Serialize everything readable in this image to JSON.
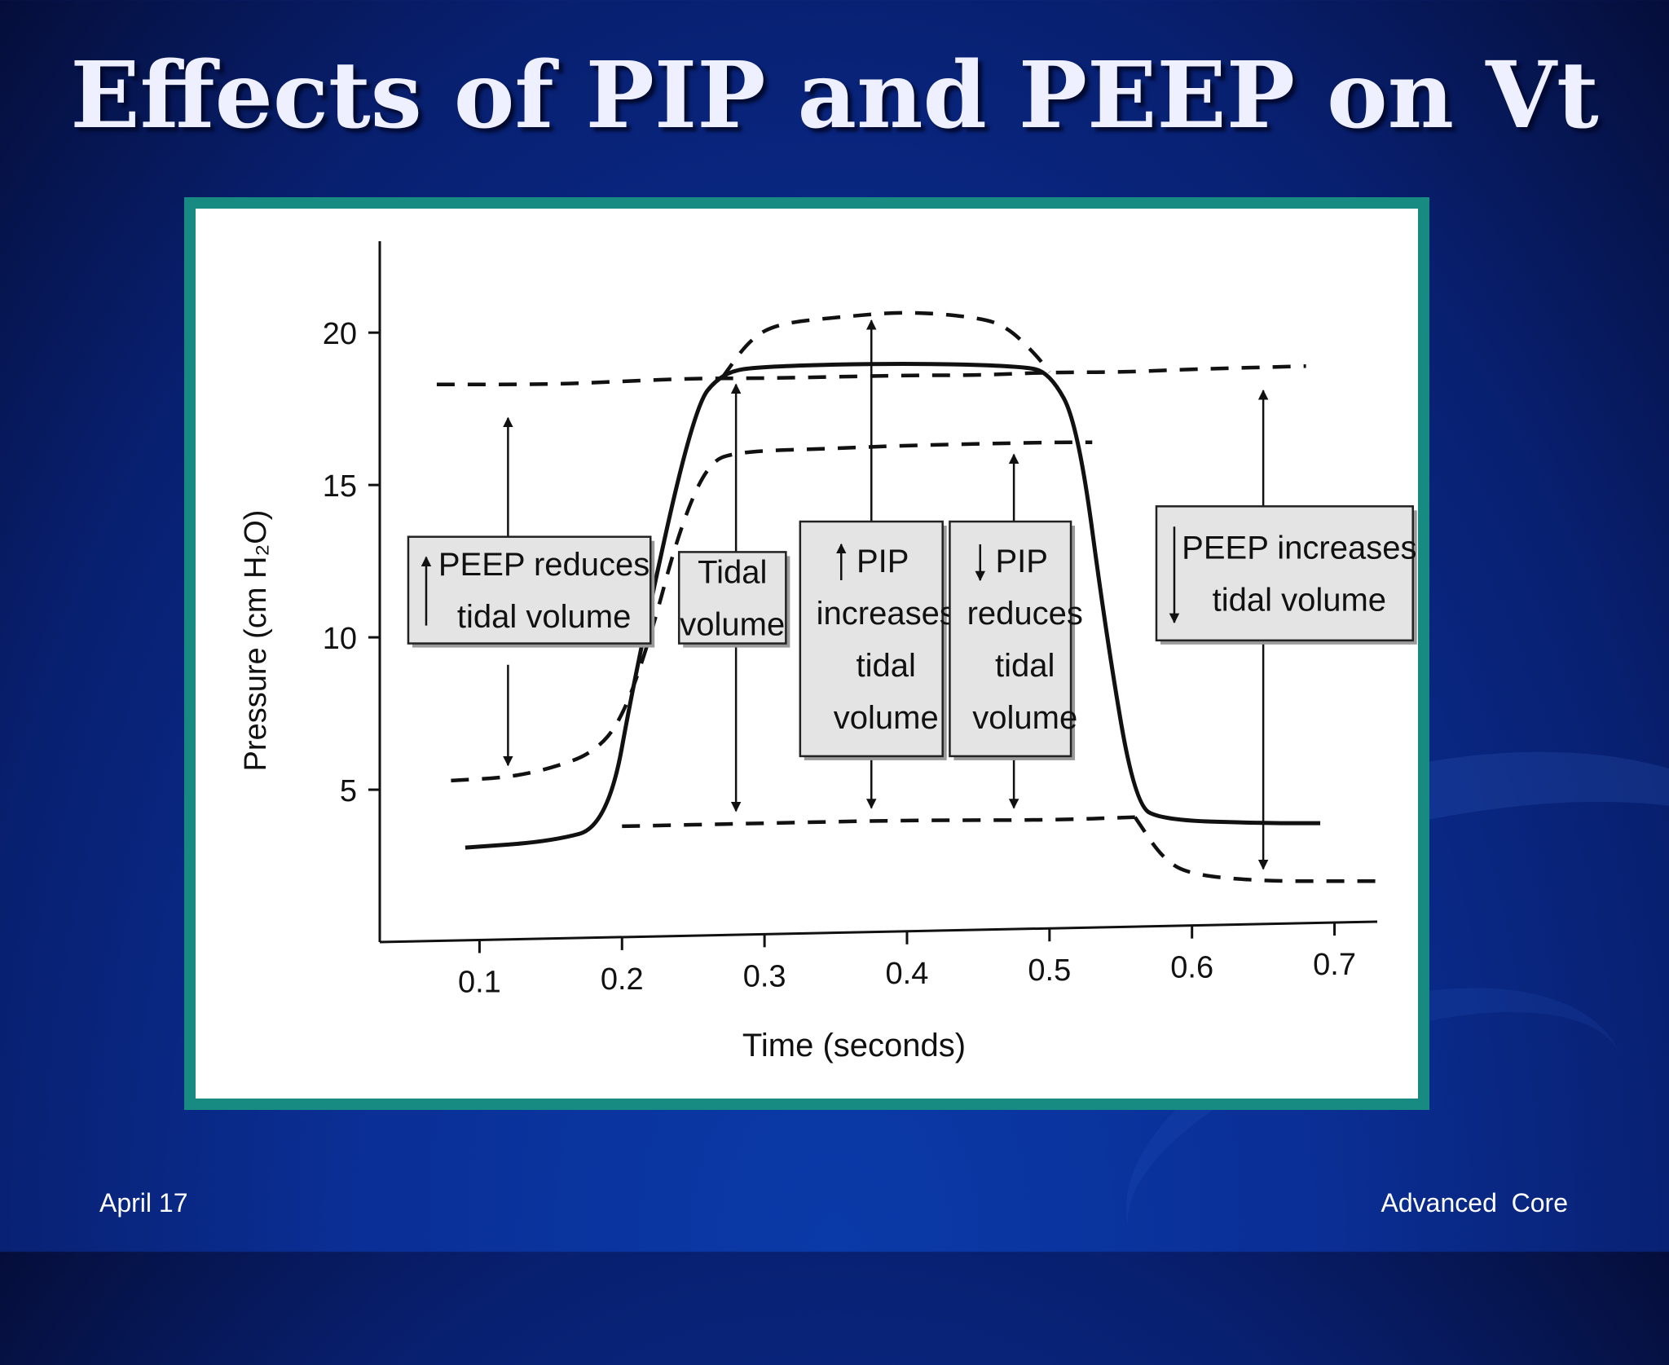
{
  "slide": {
    "title": "Effects of PIP and PEEP on Vt",
    "footer_left": "April 17",
    "footer_right": "Advanced  Core"
  },
  "chart_data": {
    "type": "line",
    "title": "",
    "xlabel": "Time (seconds)",
    "ylabel": "Pressure (cm H₂O)",
    "xlim": [
      0.03,
      0.73
    ],
    "ylim": [
      0,
      23
    ],
    "x_ticks": [
      0.1,
      0.2,
      0.3,
      0.4,
      0.5,
      0.6,
      0.7
    ],
    "x_tick_labels": [
      "0.1",
      "0.2",
      "0.3",
      "0.4",
      "0.5",
      "0.6",
      "0.7"
    ],
    "y_ticks": [
      5,
      10,
      15,
      20
    ],
    "y_tick_labels": [
      "5",
      "10",
      "15",
      "20"
    ],
    "grid": false,
    "series": [
      {
        "style": "solid",
        "x": [
          0.09,
          0.15,
          0.19,
          0.21,
          0.25,
          0.27,
          0.3,
          0.4,
          0.48,
          0.5,
          0.52,
          0.54,
          0.56,
          0.58,
          0.65,
          0.69
        ],
        "y": [
          3.1,
          3.3,
          3.8,
          9,
          17.5,
          18.7,
          18.9,
          19,
          18.9,
          18.7,
          17,
          10,
          4.5,
          4,
          3.9,
          3.9
        ]
      },
      {
        "style": "dashed",
        "x": [
          0.27,
          0.29,
          0.31,
          0.35,
          0.4,
          0.45,
          0.47,
          0.49,
          0.5
        ],
        "y": [
          18.5,
          19.8,
          20.3,
          20.5,
          20.7,
          20.5,
          20.2,
          19.3,
          18.7
        ]
      },
      {
        "style": "dashed",
        "x": [
          0.07,
          0.15,
          0.2,
          0.25,
          0.3,
          0.4,
          0.45,
          0.5,
          0.55,
          0.6,
          0.68
        ],
        "y": [
          18.3,
          18.3,
          18.4,
          18.5,
          18.5,
          18.6,
          18.6,
          18.7,
          18.7,
          18.8,
          18.9
        ]
      },
      {
        "style": "dashed",
        "x": [
          0.08,
          0.12,
          0.15,
          0.18,
          0.2,
          0.22,
          0.24,
          0.26,
          0.28,
          0.35,
          0.4,
          0.5,
          0.53
        ],
        "y": [
          5.3,
          5.4,
          5.7,
          6.2,
          7.3,
          10,
          13.5,
          15.7,
          16.1,
          16.2,
          16.3,
          16.4,
          16.4
        ]
      },
      {
        "style": "dashed",
        "x": [
          0.2,
          0.3,
          0.4,
          0.5,
          0.56
        ],
        "y": [
          3.8,
          3.9,
          4.0,
          4.0,
          4.1
        ]
      },
      {
        "style": "dashed",
        "x": [
          0.56,
          0.58,
          0.6,
          0.65,
          0.7,
          0.73
        ],
        "y": [
          4.1,
          2.7,
          2.2,
          2.0,
          2.0,
          2.0
        ]
      }
    ],
    "arrows": [
      {
        "x": 0.12,
        "y_from": 11.8,
        "y_to": 17.2
      },
      {
        "x": 0.12,
        "y_from": 9.1,
        "y_to": 5.8
      },
      {
        "x": 0.28,
        "y_from": 12.3,
        "y_to": 18.3
      },
      {
        "x": 0.28,
        "y_from": 10.1,
        "y_to": 4.3
      },
      {
        "x": 0.375,
        "y_from": 13.6,
        "y_to": 20.4
      },
      {
        "x": 0.375,
        "y_from": 6.3,
        "y_to": 4.4
      },
      {
        "x": 0.475,
        "y_from": 13.6,
        "y_to": 16.0
      },
      {
        "x": 0.475,
        "y_from": 6.3,
        "y_to": 4.4
      },
      {
        "x": 0.65,
        "y_from": 14.1,
        "y_to": 18.1
      },
      {
        "x": 0.65,
        "y_from": 10.0,
        "y_to": 2.4
      }
    ],
    "annotations": [
      {
        "id": "peep-reduces",
        "lines": [
          "PEEP reduces",
          "tidal volume"
        ],
        "arrow": "up",
        "x0": 0.05,
        "x1": 0.22,
        "y0": 13.3,
        "y1": 9.8
      },
      {
        "id": "tidal-volume",
        "lines": [
          "Tidal",
          "volume"
        ],
        "arrow": "none",
        "x0": 0.24,
        "x1": 0.315,
        "y0": 12.8,
        "y1": 9.8
      },
      {
        "id": "pip-increases",
        "lines": [
          "PIP",
          "increases",
          "tidal",
          "volume"
        ],
        "arrow": "up",
        "x0": 0.325,
        "x1": 0.425,
        "y0": 13.8,
        "y1": 6.1
      },
      {
        "id": "pip-reduces",
        "lines": [
          "PIP",
          "reduces",
          "tidal",
          "volume"
        ],
        "arrow": "down",
        "x0": 0.43,
        "x1": 0.515,
        "y0": 13.8,
        "y1": 6.1
      },
      {
        "id": "peep-increases",
        "lines": [
          "PEEP increases",
          "tidal volume"
        ],
        "arrow": "down",
        "x0": 0.575,
        "x1": 0.755,
        "y0": 14.3,
        "y1": 9.9
      }
    ]
  }
}
